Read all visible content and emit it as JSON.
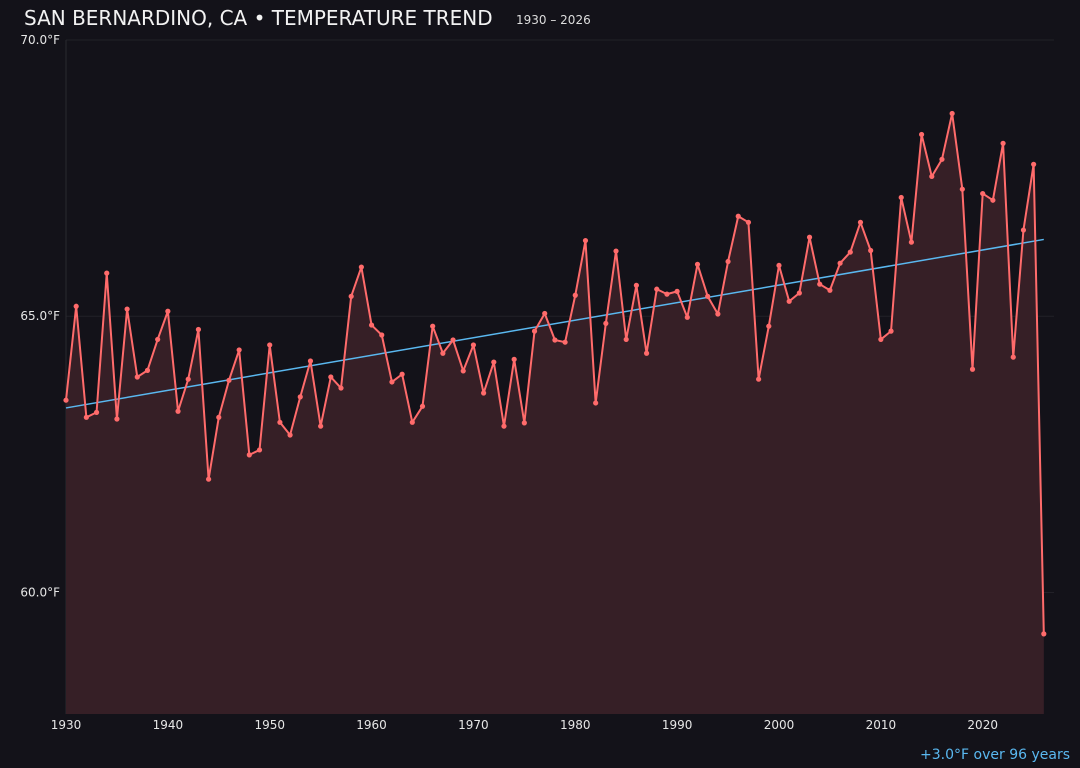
{
  "chart_data": {
    "type": "line",
    "title": "SAN BERNARDINO, CA • TEMPERATURE TREND",
    "subtitle": "1930 – 2026",
    "footer_note": "+3.0°F over 96 years",
    "xlabel": "",
    "ylabel": "",
    "xlim": [
      1930,
      2027
    ],
    "ylim": [
      57.8,
      70.0
    ],
    "x_ticks": [
      "1930",
      "1940",
      "1950",
      "1960",
      "1970",
      "1980",
      "1990",
      "2000",
      "2010",
      "2020"
    ],
    "y_ticks": [
      "60.0°F",
      "65.0°F",
      "70.0°F"
    ],
    "grid": true,
    "colors": {
      "series": "#ff6b6b",
      "fill": "#361f26",
      "trend": "#5ab8f0",
      "background": "#131219"
    },
    "x": [
      1930,
      1931,
      1932,
      1933,
      1934,
      1935,
      1936,
      1937,
      1938,
      1939,
      1940,
      1941,
      1942,
      1943,
      1944,
      1945,
      1946,
      1947,
      1948,
      1949,
      1950,
      1951,
      1952,
      1953,
      1954,
      1955,
      1956,
      1957,
      1958,
      1959,
      1960,
      1961,
      1962,
      1963,
      1964,
      1965,
      1966,
      1967,
      1968,
      1969,
      1970,
      1971,
      1972,
      1973,
      1974,
      1975,
      1976,
      1977,
      1978,
      1979,
      1980,
      1981,
      1982,
      1983,
      1984,
      1985,
      1986,
      1987,
      1988,
      1989,
      1990,
      1991,
      1992,
      1993,
      1994,
      1995,
      1996,
      1997,
      1998,
      1999,
      2000,
      2001,
      2002,
      2003,
      2004,
      2005,
      2006,
      2007,
      2008,
      2009,
      2010,
      2011,
      2012,
      2013,
      2014,
      2015,
      2016,
      2017,
      2018,
      2019,
      2020,
      2021,
      2022,
      2023,
      2024,
      2025,
      2026
    ],
    "values": [
      63.48,
      65.18,
      63.17,
      63.26,
      65.78,
      63.14,
      65.13,
      63.9,
      64.02,
      64.58,
      65.09,
      63.28,
      63.86,
      64.76,
      62.05,
      63.17,
      63.84,
      64.39,
      62.49,
      62.58,
      64.48,
      63.08,
      62.85,
      63.54,
      64.19,
      63.01,
      63.9,
      63.7,
      65.36,
      65.89,
      64.84,
      64.66,
      63.81,
      63.95,
      63.08,
      63.37,
      64.82,
      64.33,
      64.57,
      64.01,
      64.48,
      63.61,
      64.17,
      63.01,
      64.22,
      63.07,
      64.73,
      65.05,
      64.57,
      64.53,
      65.38,
      66.37,
      63.43,
      64.87,
      66.18,
      64.58,
      65.56,
      64.33,
      65.49,
      65.4,
      65.45,
      64.98,
      65.94,
      65.36,
      65.04,
      65.99,
      66.81,
      66.7,
      63.86,
      64.82,
      65.92,
      65.27,
      65.42,
      66.43,
      65.58,
      65.47,
      65.96,
      66.16,
      66.7,
      66.19,
      64.58,
      64.73,
      67.15,
      66.34,
      68.29,
      67.53,
      67.84,
      68.67,
      67.3,
      64.04,
      67.22,
      67.1,
      68.13,
      64.26,
      66.56,
      67.75,
      59.25
    ],
    "trend": {
      "start": [
        1930,
        63.34
      ],
      "end": [
        2026,
        66.39
      ]
    }
  }
}
